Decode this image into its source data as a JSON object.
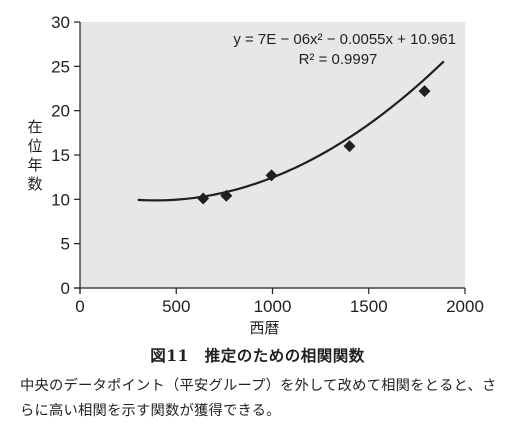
{
  "chart_data": {
    "type": "scatter",
    "title": "",
    "xlabel": "西暦",
    "ylabel": "在位年数",
    "xlim": [
      0,
      2000
    ],
    "ylim": [
      0,
      30
    ],
    "x_ticks": [
      "0",
      "500",
      "1000",
      "1500",
      "2000"
    ],
    "y_ticks": [
      "0",
      "5",
      "10",
      "15",
      "20",
      "25",
      "30"
    ],
    "grid": false,
    "legend": "none",
    "points": [
      {
        "x": 640,
        "y": 10.1
      },
      {
        "x": 760,
        "y": 10.4
      },
      {
        "x": 995,
        "y": 12.7
      },
      {
        "x": 1400,
        "y": 16.0
      },
      {
        "x": 1790,
        "y": 22.2
      }
    ],
    "trendline": {
      "type": "polynomial",
      "coefficients": [
        7e-06,
        -0.0055,
        10.961
      ],
      "x_range": [
        300,
        1890
      ],
      "equation": "y = 7E − 06x² − 0.0055x + 10.961",
      "r_squared": "R² = 0.9997"
    },
    "colors": {
      "plot_background": "#e6e7e8",
      "ink": "#231f20"
    }
  },
  "caption": "図11　推定のための相関関数",
  "description": "中央のデータポイント（平安グループ）を外して改めて相関をとると、さらに高い相関を示す関数が獲得できる。"
}
